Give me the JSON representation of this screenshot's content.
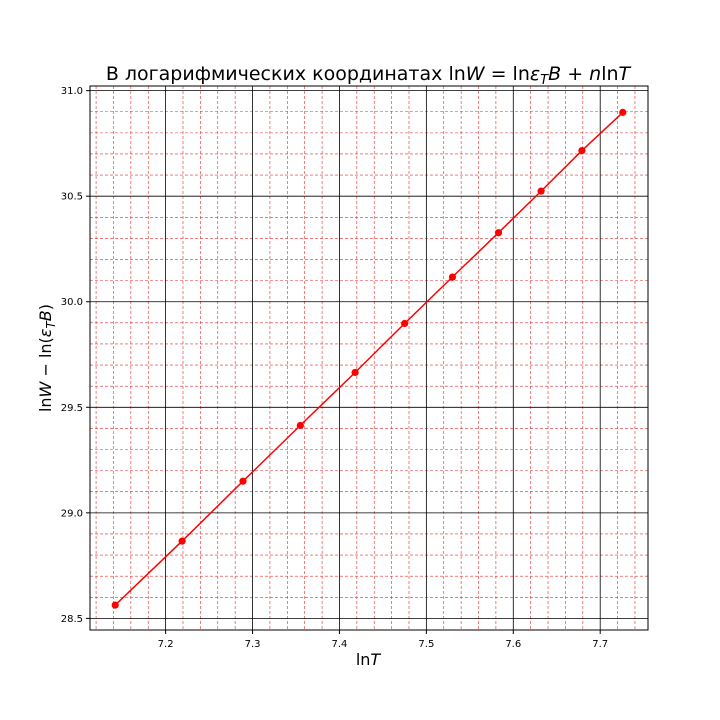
{
  "chart_data": {
    "type": "line",
    "title_parts": {
      "prefix": "В логарифмических координатах ",
      "lnW": "ln",
      "W": "W",
      "eq": " = ln",
      "eps": "ε",
      "T_sub": "T",
      "B": "B",
      "plus": " + ",
      "n": "n",
      "lnT_ln": "ln",
      "lnT_T": "T"
    },
    "xlabel_parts": {
      "ln": "ln",
      "T": "T"
    },
    "ylabel_parts": {
      "lnW": "ln",
      "W": "W",
      "minus": " − ln(",
      "eps": "ε",
      "T_sub": "T",
      "B": "B",
      "close": ")"
    },
    "xlim": [
      7.113,
      7.755
    ],
    "ylim": [
      28.445,
      31.022
    ],
    "x_ticks": [
      7.2,
      7.3,
      7.4,
      7.5,
      7.6,
      7.7
    ],
    "x_tick_labels": [
      "7.2",
      "7.3",
      "7.4",
      "7.5",
      "7.6",
      "7.7"
    ],
    "y_ticks": [
      28.5,
      29.0,
      29.5,
      30.0,
      30.5,
      31.0
    ],
    "y_tick_labels": [
      "28.5",
      "29.0",
      "29.5",
      "30.0",
      "30.5",
      "31.0"
    ],
    "grid": {
      "major": true,
      "minor": true,
      "major_color": "#000000",
      "minor_color": "#e03030"
    },
    "series": [
      {
        "color": "#ff0000",
        "marker": "circle",
        "x": [
          7.142,
          7.219,
          7.289,
          7.355,
          7.418,
          7.475,
          7.53,
          7.583,
          7.632,
          7.679,
          7.726
        ],
        "y": [
          28.563,
          28.866,
          29.15,
          29.414,
          29.665,
          29.897,
          30.117,
          30.327,
          30.524,
          30.716,
          30.897
        ]
      }
    ]
  }
}
